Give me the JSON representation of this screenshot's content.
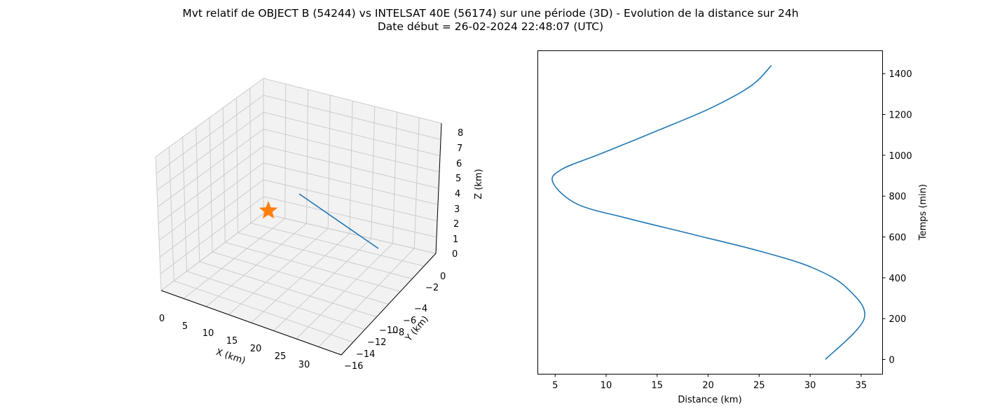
{
  "title_line1": "Mvt relatif de OBJECT B (54244) vs INTELSAT 40E (56174) sur une période (3D) - Evolution de la distance sur 24h",
  "title_line2": "Date début = 26-02-2024 22:48:07 (UTC)",
  "colors": {
    "series": "#1f77b4",
    "marker": "#ff7f0e",
    "pane": "#f2f2f2",
    "grid": "#cccccc"
  },
  "chart_data": [
    {
      "type": "line3d",
      "xlabel": "X (km)",
      "ylabel": "Y (km)",
      "zlabel": "Z (km)",
      "x_ticks": [
        "0",
        "5",
        "10",
        "15",
        "20",
        "25",
        "30"
      ],
      "y_ticks": [
        "0",
        "−2",
        "−4",
        "−6",
        "−8",
        "−10",
        "−12",
        "−14",
        "−16"
      ],
      "z_ticks": [
        "0",
        "1",
        "2",
        "3",
        "4",
        "5",
        "6",
        "7",
        "8"
      ],
      "xlim": [
        -1,
        33
      ],
      "ylim": [
        -16.5,
        0.5
      ],
      "zlim": [
        0,
        8.5
      ],
      "grid": true,
      "series": [
        {
          "x": [
            31.5,
            5
          ],
          "y": [
            0,
            0
          ],
          "z": [
            0,
            3.5
          ]
        }
      ],
      "marker": {
        "symbol": "star",
        "x": 0,
        "y": 0,
        "z": 0
      }
    },
    {
      "type": "line",
      "xlabel": "Distance (km)",
      "ylabel": "Temps (min)",
      "y_axis_side": "right",
      "x_ticks": [
        5,
        10,
        15,
        20,
        25,
        30,
        35
      ],
      "y_ticks": [
        0,
        200,
        400,
        600,
        800,
        1000,
        1200,
        1400
      ],
      "xlim": [
        3.3,
        37.1
      ],
      "ylim": [
        -72,
        1512
      ],
      "grid": false,
      "series": [
        {
          "x": [
            31.5,
            35.3,
            33.6,
            30.2,
            25.1,
            18.7,
            12.2,
            7.2,
            4.8,
            5.6,
            9.6,
            15.0,
            20.2,
            24.2,
            26.2
          ],
          "y": [
            0,
            200,
            350,
            450,
            530,
            610,
            690,
            760,
            865,
            930,
            1010,
            1120,
            1230,
            1340,
            1440
          ]
        }
      ]
    }
  ]
}
